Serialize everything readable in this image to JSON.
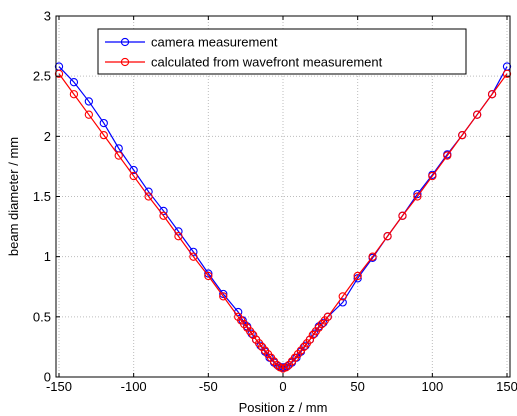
{
  "chart_data": {
    "type": "line",
    "xlabel": "Position z / mm",
    "ylabel": "beam diameter / mm",
    "xlim": [
      -152,
      152
    ],
    "ylim": [
      0,
      3
    ],
    "xticks": [
      -150,
      -100,
      -50,
      0,
      50,
      100,
      150
    ],
    "yticks": [
      0,
      0.5,
      1,
      1.5,
      2,
      2.5,
      3
    ],
    "xtick_labels": [
      "-150",
      "-100",
      "-50",
      "0",
      "50",
      "100",
      "150"
    ],
    "ytick_labels": [
      "0",
      "0.5",
      "1",
      "1.5",
      "2",
      "2.5",
      "3"
    ],
    "grid": true,
    "legend_position": "top-center",
    "series": [
      {
        "name": "camera measurement",
        "color": "#0000ff",
        "marker": "circle",
        "x": [
          -150,
          -140,
          -130,
          -120,
          -110,
          -100,
          -90,
          -80,
          -70,
          -60,
          -50,
          -40,
          -30,
          -27,
          -24,
          -21,
          -18,
          -15,
          -12,
          -9,
          -6,
          -3,
          -1,
          0,
          1,
          3,
          6,
          9,
          12,
          15,
          18,
          21,
          24,
          27,
          30,
          40,
          50,
          60,
          70,
          80,
          90,
          100,
          110,
          120,
          130,
          140,
          150
        ],
        "y": [
          2.58,
          2.45,
          2.29,
          2.11,
          1.9,
          1.72,
          1.54,
          1.38,
          1.21,
          1.04,
          0.86,
          0.69,
          0.54,
          0.47,
          0.42,
          0.36,
          0.31,
          0.26,
          0.21,
          0.16,
          0.12,
          0.09,
          0.08,
          0.08,
          0.08,
          0.09,
          0.12,
          0.16,
          0.21,
          0.26,
          0.31,
          0.36,
          0.42,
          0.45,
          0.5,
          0.62,
          0.82,
          0.99,
          1.17,
          1.34,
          1.52,
          1.68,
          1.85,
          2.01,
          2.18,
          2.35,
          2.58
        ]
      },
      {
        "name": "calculated from wavefront measurement",
        "color": "#ff0000",
        "marker": "circle",
        "x": [
          -150,
          -140,
          -130,
          -120,
          -110,
          -100,
          -90,
          -80,
          -70,
          -60,
          -50,
          -40,
          -30,
          -28,
          -26,
          -24,
          -22,
          -20,
          -18,
          -16,
          -14,
          -12,
          -10,
          -8,
          -6,
          -4,
          -2,
          0,
          2,
          4,
          6,
          8,
          10,
          12,
          14,
          16,
          18,
          20,
          22,
          24,
          26,
          28,
          30,
          40,
          50,
          60,
          70,
          80,
          90,
          100,
          110,
          120,
          130,
          140,
          150
        ],
        "y": [
          2.52,
          2.35,
          2.18,
          2.01,
          1.84,
          1.67,
          1.5,
          1.34,
          1.17,
          1.0,
          0.84,
          0.67,
          0.5,
          0.47,
          0.44,
          0.41,
          0.38,
          0.35,
          0.31,
          0.28,
          0.25,
          0.22,
          0.19,
          0.16,
          0.13,
          0.1,
          0.08,
          0.07,
          0.08,
          0.1,
          0.13,
          0.16,
          0.19,
          0.22,
          0.25,
          0.28,
          0.31,
          0.35,
          0.38,
          0.41,
          0.44,
          0.47,
          0.5,
          0.67,
          0.84,
          1.0,
          1.17,
          1.34,
          1.5,
          1.67,
          1.84,
          2.01,
          2.18,
          2.35,
          2.52
        ]
      }
    ]
  }
}
